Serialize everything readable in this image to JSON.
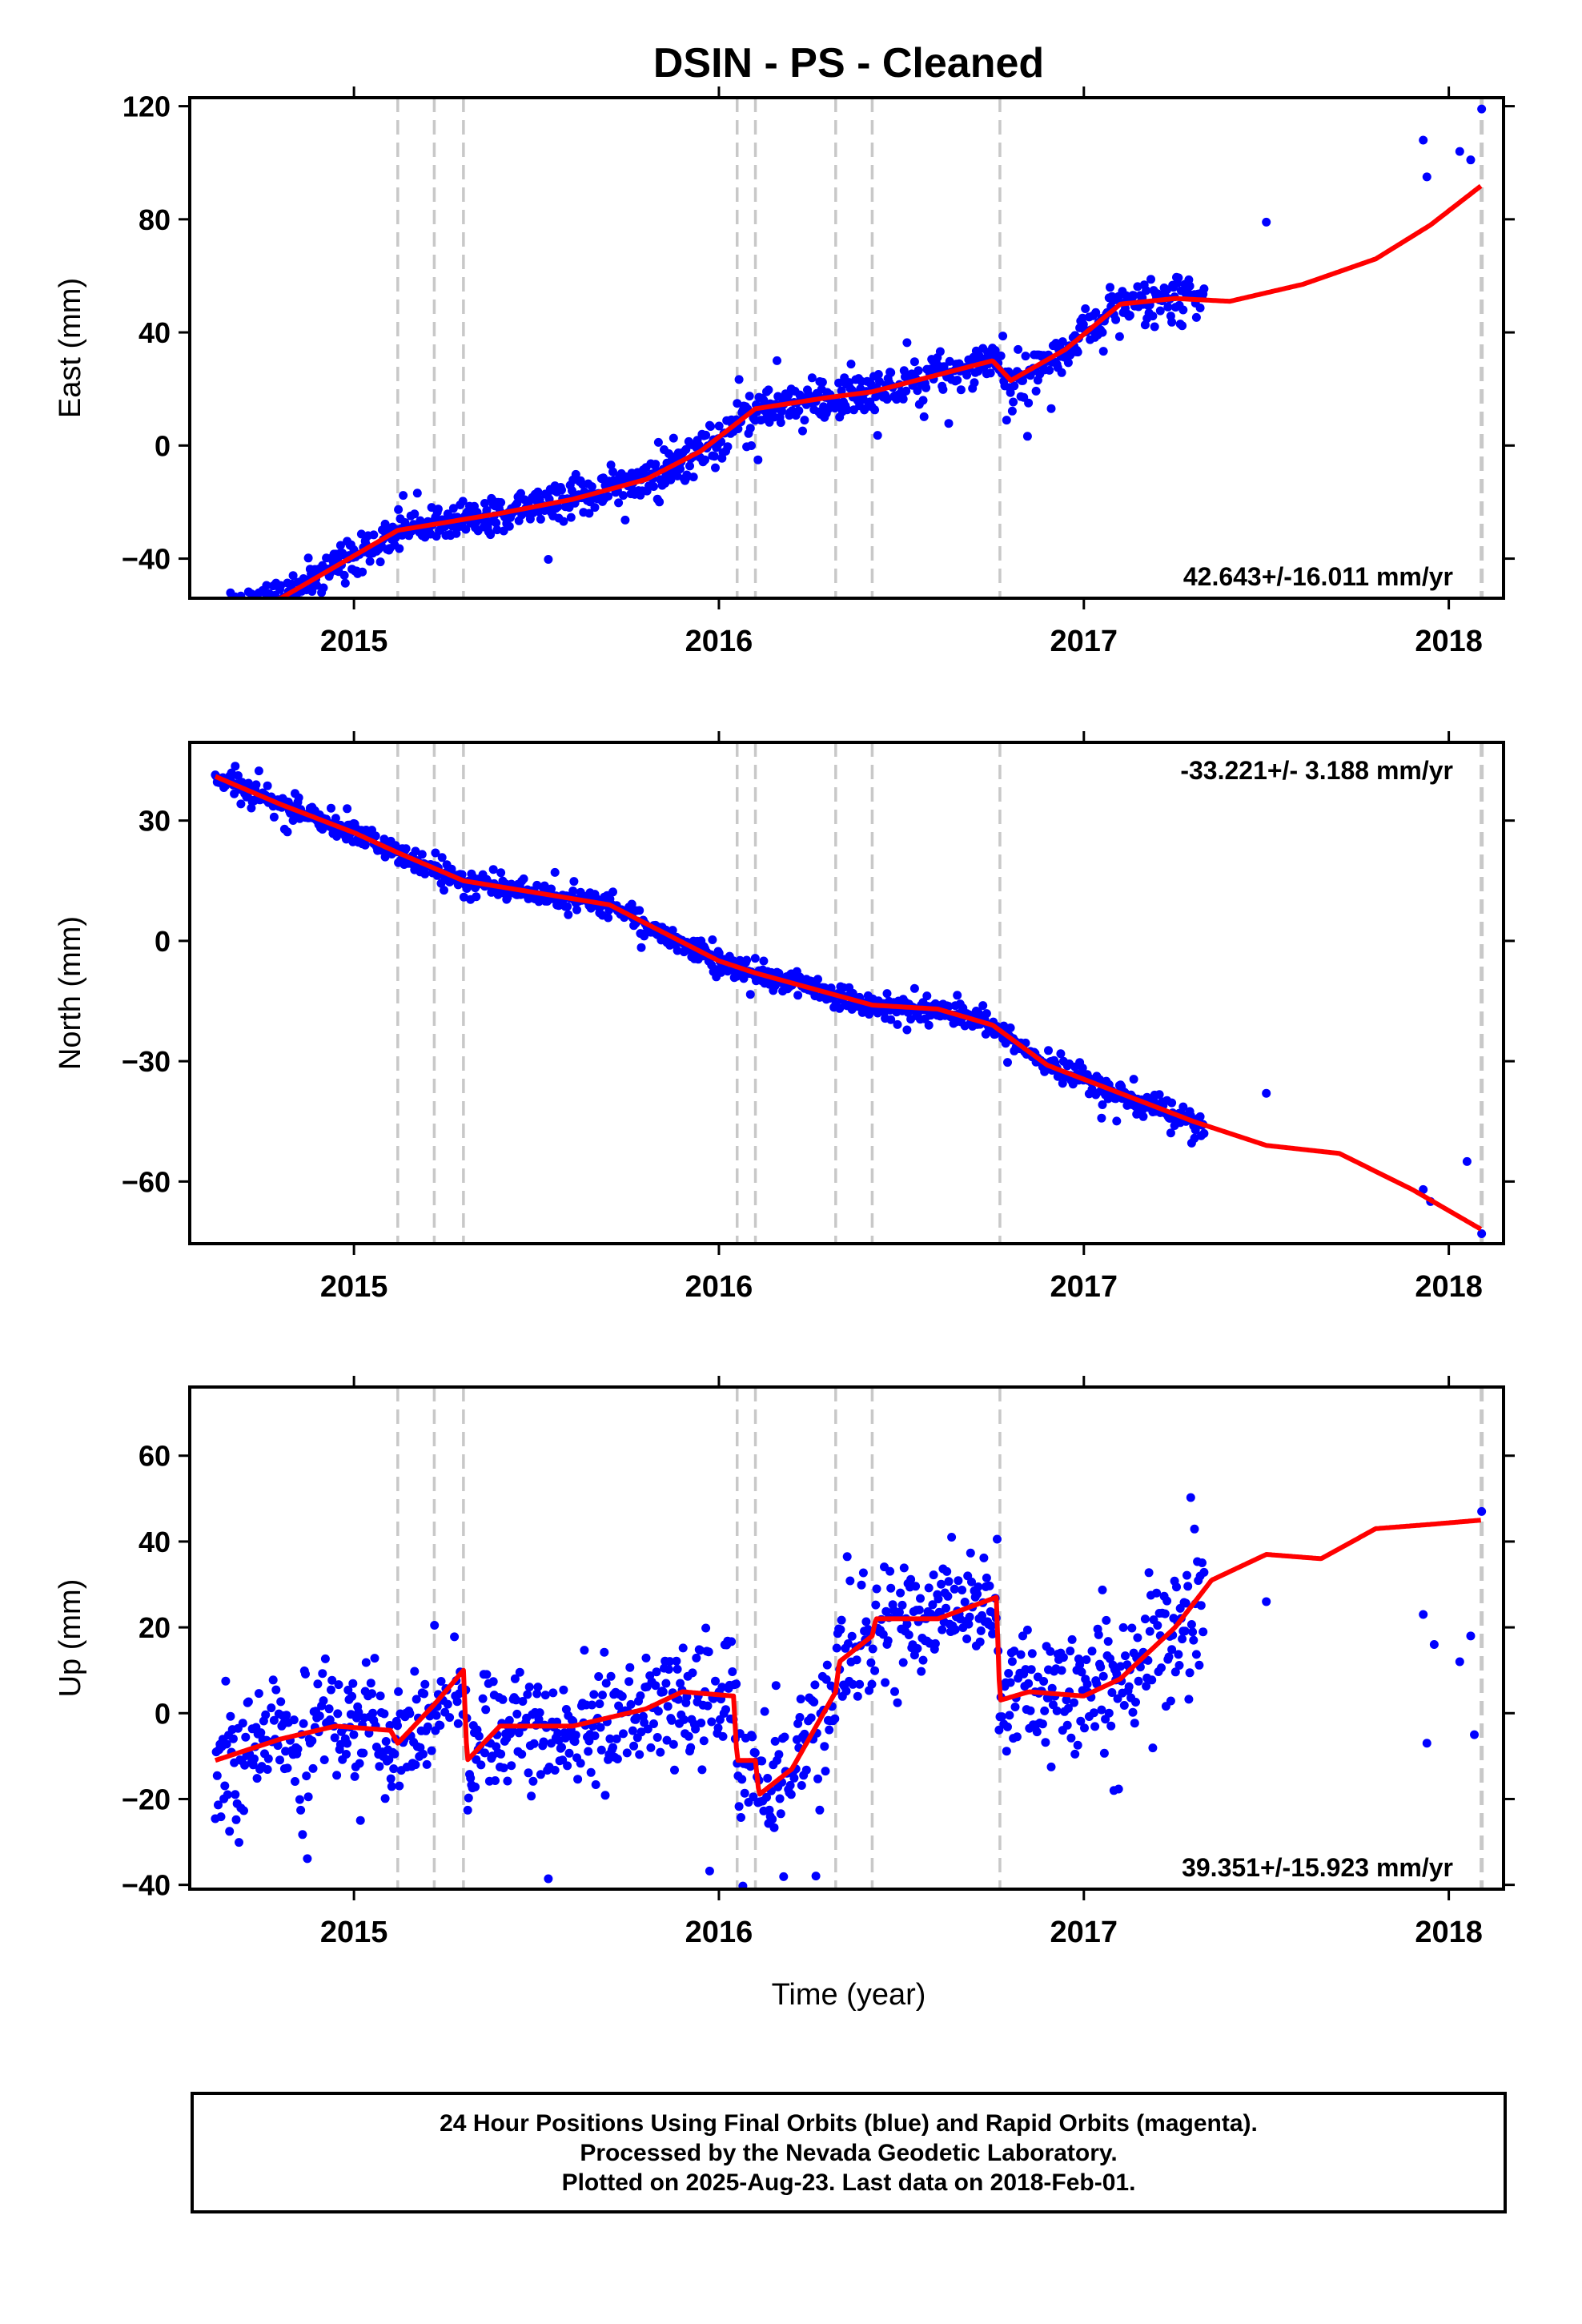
{
  "title": "DSIN  - PS - Cleaned",
  "colors": {
    "data": "#0000ff",
    "model": "#ff0000",
    "event": "#c8c8c8",
    "frame": "#000000"
  },
  "chart_data": [
    {
      "type": "scatter",
      "ylabel": "East (mm)",
      "ylim": [
        -54,
        123
      ],
      "yticks": [
        -40,
        0,
        40,
        80,
        120
      ],
      "ytick_labels": [
        "−40",
        "0",
        "40",
        "80",
        "120"
      ],
      "xlim": [
        2014.55,
        2018.15
      ],
      "xticks": [
        2015,
        2016,
        2017,
        2018
      ],
      "xtick_labels": [
        "2015",
        "2016",
        "2017",
        "2018"
      ],
      "rate_label": "42.643+/-16.011 mm/yr",
      "rate_position": "bottom-right",
      "event_lines": [
        2015.12,
        2015.22,
        2015.3,
        2016.05,
        2016.1,
        2016.32,
        2016.42,
        2016.77,
        2018.09
      ],
      "model_knots": [
        [
          2014.62,
          -59
        ],
        [
          2014.8,
          -54
        ],
        [
          2015.0,
          -39
        ],
        [
          2015.12,
          -30
        ],
        [
          2015.4,
          -24
        ],
        [
          2015.6,
          -19
        ],
        [
          2015.8,
          -12
        ],
        [
          2015.95,
          -2
        ],
        [
          2016.05,
          8
        ],
        [
          2016.1,
          13
        ],
        [
          2016.3,
          17
        ],
        [
          2016.42,
          19
        ],
        [
          2016.6,
          25
        ],
        [
          2016.75,
          30
        ],
        [
          2016.8,
          23
        ],
        [
          2016.95,
          34
        ],
        [
          2017.1,
          50
        ],
        [
          2017.25,
          52
        ],
        [
          2017.4,
          51
        ],
        [
          2017.6,
          57
        ],
        [
          2017.8,
          66
        ],
        [
          2017.95,
          78
        ],
        [
          2018.09,
          92
        ]
      ],
      "scatter_seed": 11,
      "scatter_noise": 5,
      "scatter_outlier_spread": 15,
      "scatter_data_until": 2017.33,
      "sparse_points": [
        [
          2017.5,
          79
        ],
        [
          2017.93,
          108
        ],
        [
          2017.94,
          95
        ],
        [
          2018.03,
          104
        ],
        [
          2018.06,
          101
        ],
        [
          2018.09,
          119
        ]
      ]
    },
    {
      "type": "scatter",
      "ylabel": "North (mm)",
      "ylim": [
        -75.5,
        49.5
      ],
      "yticks": [
        -60,
        -30,
        0,
        30
      ],
      "ytick_labels": [
        "−60",
        "−30",
        "0",
        "30"
      ],
      "xlim": [
        2014.55,
        2018.15
      ],
      "xticks": [
        2015,
        2016,
        2017,
        2018
      ],
      "xtick_labels": [
        "2015",
        "2016",
        "2017",
        "2018"
      ],
      "rate_label": "-33.221+/- 3.188 mm/yr",
      "rate_position": "top-right",
      "event_lines": [
        2015.12,
        2015.22,
        2015.3,
        2016.05,
        2016.1,
        2016.32,
        2016.42,
        2016.77,
        2018.09
      ],
      "model_knots": [
        [
          2014.62,
          41
        ],
        [
          2014.8,
          34
        ],
        [
          2015.0,
          27
        ],
        [
          2015.12,
          22
        ],
        [
          2015.3,
          15
        ],
        [
          2015.5,
          12
        ],
        [
          2015.7,
          9
        ],
        [
          2015.85,
          2
        ],
        [
          2016.0,
          -5
        ],
        [
          2016.1,
          -8
        ],
        [
          2016.3,
          -13
        ],
        [
          2016.42,
          -16
        ],
        [
          2016.6,
          -17
        ],
        [
          2016.75,
          -21
        ],
        [
          2016.9,
          -31
        ],
        [
          2017.1,
          -38
        ],
        [
          2017.3,
          -45
        ],
        [
          2017.5,
          -51
        ],
        [
          2017.7,
          -53
        ],
        [
          2017.9,
          -62
        ],
        [
          2018.09,
          -72
        ]
      ],
      "scatter_seed": 23,
      "scatter_noise": 2,
      "scatter_outlier_spread": 5,
      "scatter_data_until": 2017.33,
      "sparse_points": [
        [
          2017.5,
          -38
        ],
        [
          2017.93,
          -62
        ],
        [
          2017.95,
          -65
        ],
        [
          2018.05,
          -55
        ],
        [
          2018.09,
          -73
        ]
      ]
    },
    {
      "type": "scatter",
      "ylabel": "Up (mm)",
      "ylim": [
        -41,
        76
      ],
      "yticks": [
        -40,
        -20,
        0,
        20,
        40,
        60
      ],
      "ytick_labels": [
        "−40",
        "−20",
        "0",
        "20",
        "40",
        "60"
      ],
      "xlim": [
        2014.55,
        2018.15
      ],
      "xticks": [
        2015,
        2016,
        2017,
        2018
      ],
      "xtick_labels": [
        "2015",
        "2016",
        "2017",
        "2018"
      ],
      "xlabel": "Time (year)",
      "rate_label": "39.351+/-15.923 mm/yr",
      "rate_position": "bottom-right",
      "event_lines": [
        2015.12,
        2015.22,
        2015.3,
        2016.05,
        2016.1,
        2016.32,
        2016.42,
        2016.77,
        2018.09
      ],
      "model_knots": [
        [
          2014.62,
          -11
        ],
        [
          2014.8,
          -6
        ],
        [
          2014.95,
          -3
        ],
        [
          2015.1,
          -4
        ],
        [
          2015.12,
          -7
        ],
        [
          2015.22,
          2
        ],
        [
          2015.3,
          10
        ],
        [
          2015.31,
          -11
        ],
        [
          2015.4,
          -3
        ],
        [
          2015.6,
          -3
        ],
        [
          2015.8,
          1
        ],
        [
          2015.9,
          5
        ],
        [
          2016.04,
          4
        ],
        [
          2016.05,
          -11
        ],
        [
          2016.1,
          -11
        ],
        [
          2016.11,
          -19
        ],
        [
          2016.2,
          -13
        ],
        [
          2016.32,
          5
        ],
        [
          2016.33,
          12
        ],
        [
          2016.42,
          18
        ],
        [
          2016.43,
          22
        ],
        [
          2016.6,
          22
        ],
        [
          2016.76,
          27
        ],
        [
          2016.77,
          3
        ],
        [
          2016.85,
          5
        ],
        [
          2017.0,
          4
        ],
        [
          2017.1,
          8
        ],
        [
          2017.25,
          20
        ],
        [
          2017.35,
          31
        ],
        [
          2017.5,
          37
        ],
        [
          2017.65,
          36
        ],
        [
          2017.8,
          43
        ],
        [
          2017.95,
          44
        ],
        [
          2018.09,
          45
        ]
      ],
      "scatter_seed": 37,
      "scatter_noise": 10,
      "scatter_outlier_spread": 25,
      "scatter_data_until": 2017.33,
      "sparse_points": [
        [
          2017.5,
          26
        ],
        [
          2017.93,
          23
        ],
        [
          2017.94,
          -7
        ],
        [
          2017.96,
          16
        ],
        [
          2018.03,
          12
        ],
        [
          2018.06,
          18
        ],
        [
          2018.07,
          -5
        ],
        [
          2018.09,
          47
        ]
      ]
    }
  ],
  "footer": {
    "line1": "24 Hour Positions Using Final Orbits (blue) and Rapid Orbits (magenta).",
    "line2": "Processed by the Nevada Geodetic Laboratory.",
    "line3": "Plotted on 2025-Aug-23. Last data on 2018-Feb-01."
  }
}
